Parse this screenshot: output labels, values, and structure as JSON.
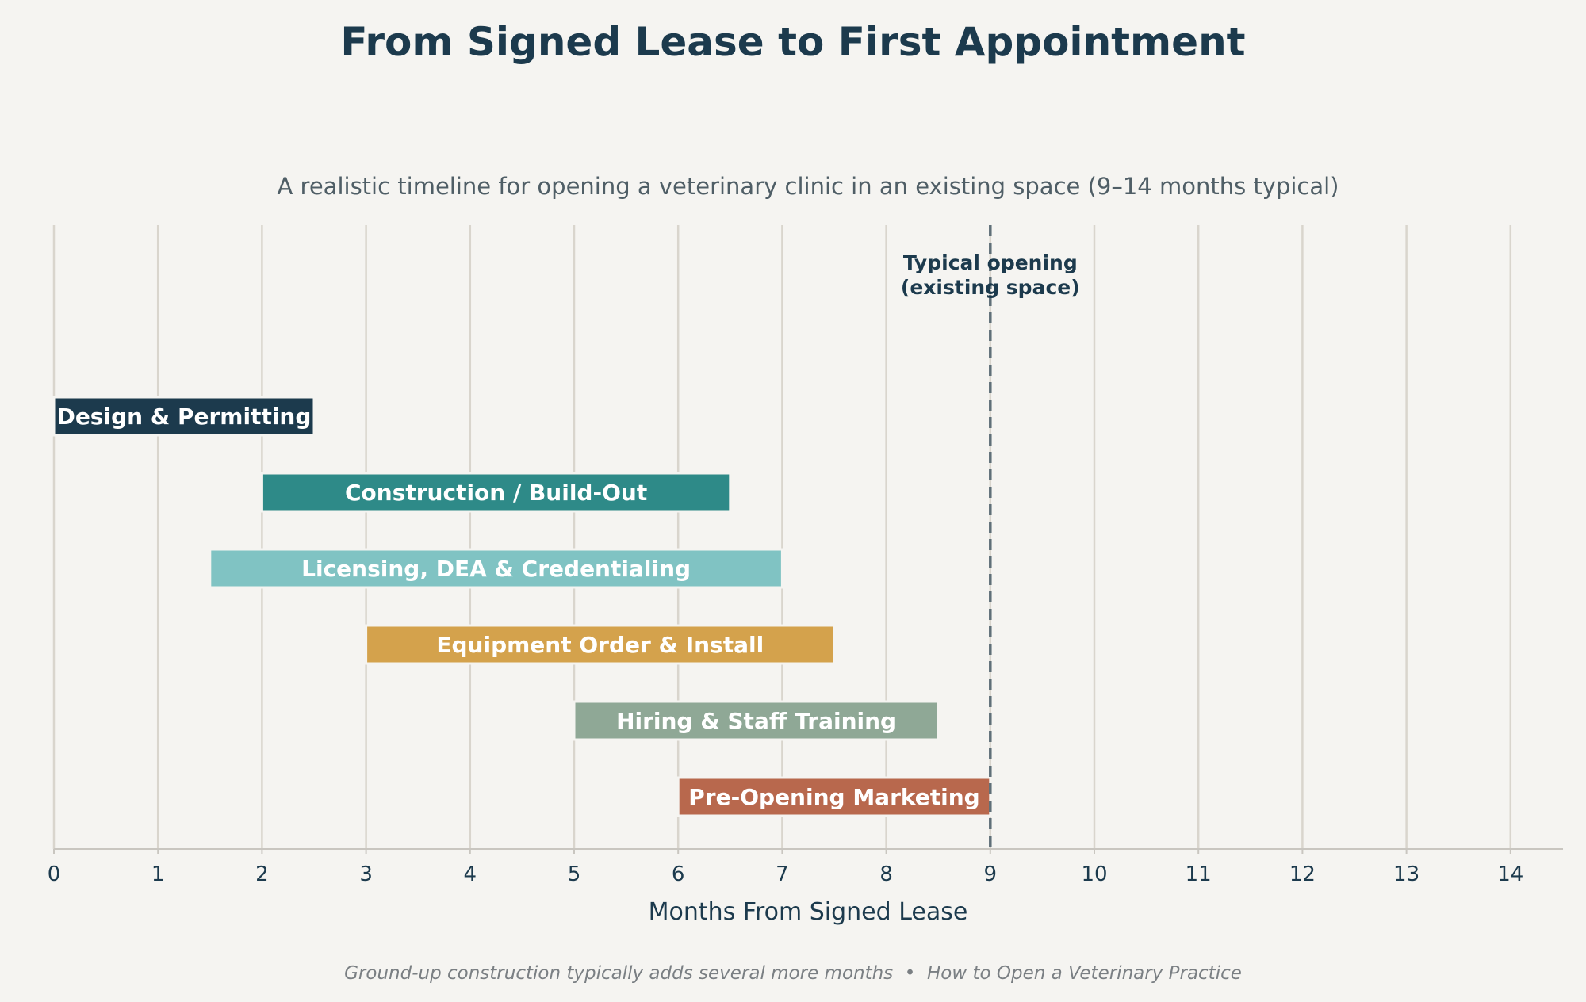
{
  "chart_data": {
    "type": "bar",
    "orientation": "horizontal",
    "title": "From Signed Lease to First Appointment",
    "subtitle": "A realistic timeline for opening a veterinary clinic in an existing space (9–14 months typical)",
    "xlabel": "Months From Signed Lease",
    "ylabel": "",
    "xlim": [
      0,
      14.5
    ],
    "xticks": [
      0,
      1,
      2,
      3,
      4,
      5,
      6,
      7,
      8,
      9,
      10,
      11,
      12,
      13,
      14
    ],
    "grid": "vertical",
    "tasks": [
      {
        "label": "Design & Permitting",
        "start": 0,
        "end": 2.5,
        "color": "#1c3a4d"
      },
      {
        "label": "Construction / Build-Out",
        "start": 2,
        "end": 6.5,
        "color": "#2e8a88"
      },
      {
        "label": "Licensing, DEA & Credentialing",
        "start": 1.5,
        "end": 7,
        "color": "#80c3c3"
      },
      {
        "label": "Equipment Order & Install",
        "start": 3,
        "end": 7.5,
        "color": "#d4a24c"
      },
      {
        "label": "Hiring & Staff Training",
        "start": 5,
        "end": 8.5,
        "color": "#8fa896"
      },
      {
        "label": "Pre-Opening Marketing",
        "start": 6,
        "end": 9,
        "color": "#b8684d"
      }
    ],
    "reference_line": {
      "x": 9,
      "label_line1": "Typical opening",
      "label_line2": "(existing space)"
    },
    "footnote": "Ground-up construction typically adds several more months  •  How to Open a Veterinary Practice"
  },
  "colors": {
    "background": "#f5f4f1",
    "title": "#1c3a4d",
    "subtitle": "#4f5e66",
    "grid": "#d9d5cd",
    "axis": "#c9c6c0",
    "reference": "#5f6f78",
    "footnote": "#7a7f83",
    "bar_text": "#ffffff"
  }
}
